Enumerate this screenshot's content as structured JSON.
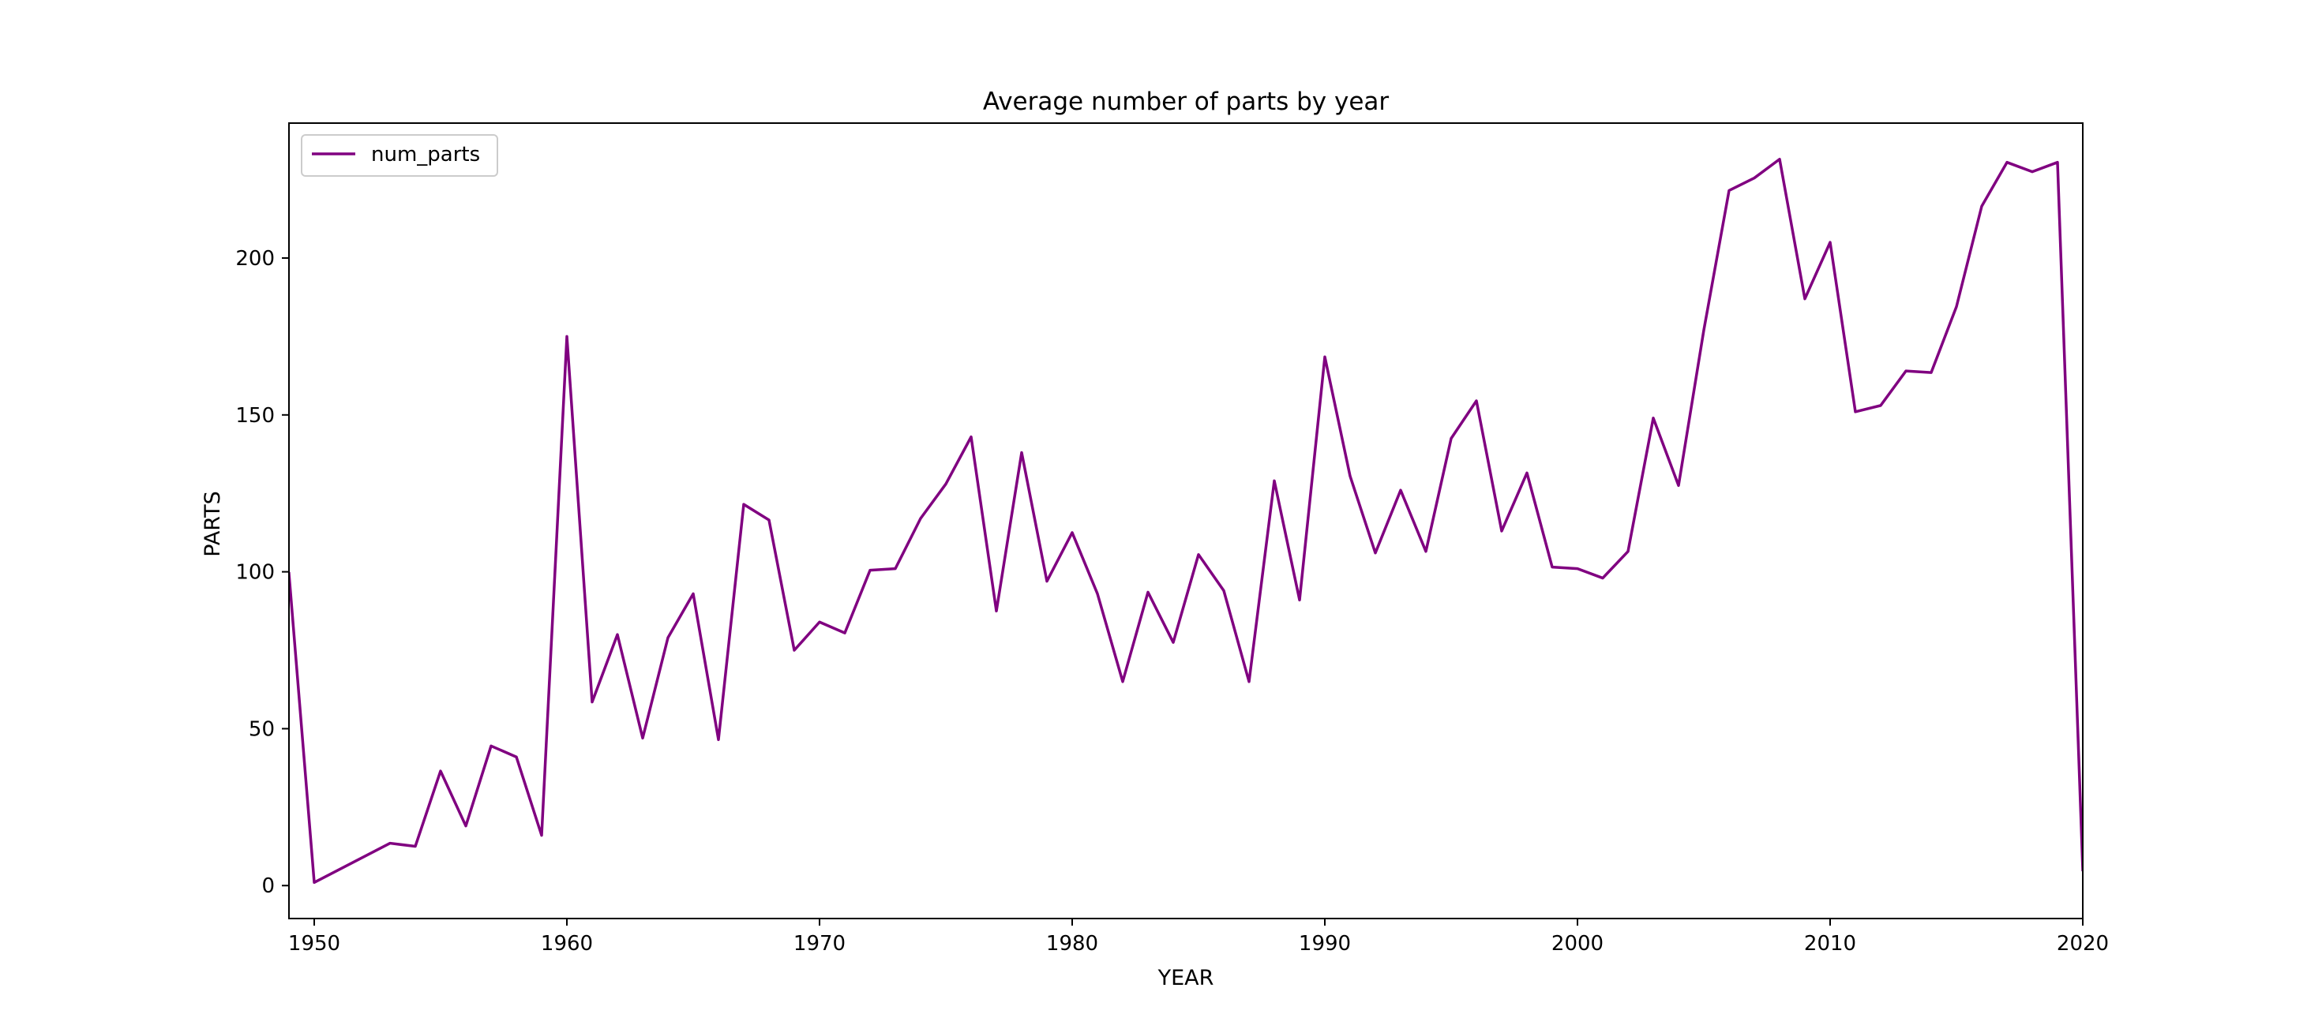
{
  "chart_data": {
    "type": "line",
    "title": "Average number of parts by year",
    "xlabel": "YEAR",
    "ylabel": "PARTS",
    "xlim": [
      1949,
      2020
    ],
    "ylim": [
      -10.5,
      243
    ],
    "xticks": [
      1950,
      1960,
      1970,
      1980,
      1990,
      2000,
      2010,
      2020
    ],
    "yticks": [
      0,
      50,
      100,
      150,
      200
    ],
    "grid": false,
    "legend": "upper-left",
    "series": [
      {
        "name": "num_parts",
        "color": "#800080",
        "x": [
          1949,
          1950,
          1953,
          1954,
          1955,
          1956,
          1957,
          1958,
          1959,
          1960,
          1961,
          1962,
          1963,
          1964,
          1965,
          1966,
          1967,
          1968,
          1969,
          1970,
          1971,
          1972,
          1973,
          1974,
          1975,
          1976,
          1977,
          1978,
          1979,
          1980,
          1981,
          1982,
          1983,
          1984,
          1985,
          1986,
          1987,
          1988,
          1989,
          1990,
          1991,
          1992,
          1993,
          1994,
          1995,
          1996,
          1997,
          1998,
          1999,
          2000,
          2001,
          2002,
          2003,
          2004,
          2005,
          2006,
          2007,
          2008,
          2009,
          2010,
          2011,
          2012,
          2013,
          2014,
          2015,
          2016,
          2017,
          2018,
          2019,
          2020
        ],
        "values": [
          99.5,
          1,
          13.5,
          12.5,
          36.5,
          19,
          44.5,
          41,
          16,
          175,
          58.5,
          80,
          47,
          79,
          93,
          46.5,
          121.5,
          116.5,
          75,
          84,
          80.5,
          100.5,
          101,
          117,
          128,
          143,
          87.5,
          138,
          97,
          112.5,
          93,
          65,
          93.5,
          77.5,
          105.5,
          94,
          65,
          129,
          91,
          168.5,
          130.5,
          106,
          126,
          106.5,
          142.5,
          154.5,
          113,
          131.5,
          101.5,
          101,
          98,
          106.5,
          149,
          127.5,
          177,
          221.5,
          225.5,
          231.5,
          187,
          205,
          151,
          153,
          164,
          163.5,
          184.5,
          216.5,
          230.5,
          227.5,
          230.5,
          5
        ]
      }
    ]
  }
}
